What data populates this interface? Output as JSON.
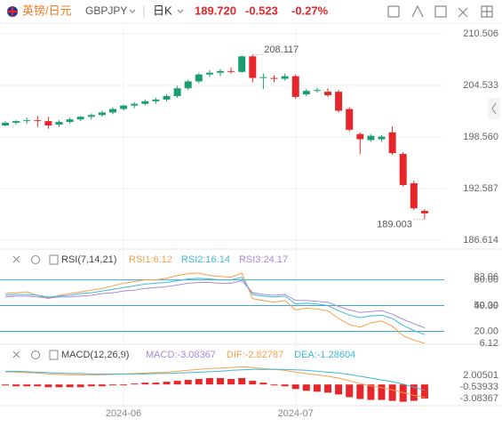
{
  "header": {
    "name": "英镑/日元",
    "symbol": "GBPJPY",
    "period": "日K",
    "price": "189.720",
    "change": "-0.523",
    "change_pct": "-0.27%"
  },
  "chart_data": [
    {
      "type": "candlestick",
      "categories": [
        null,
        null,
        null,
        null,
        null,
        null,
        null,
        null,
        null,
        null,
        null,
        "2024-06",
        null,
        null,
        null,
        null,
        null,
        null,
        null,
        null,
        null,
        null,
        null,
        null,
        null,
        null,
        null,
        "2024-07",
        null,
        null,
        null,
        null,
        null,
        null,
        null,
        null,
        null,
        null,
        null,
        null
      ],
      "open": [
        199.9,
        200.2,
        200.4,
        200.5,
        200.4,
        200.0,
        200.3,
        200.6,
        200.9,
        201.1,
        201.4,
        201.8,
        202.2,
        202.4,
        202.7,
        202.9,
        203.3,
        204.2,
        205.0,
        205.8,
        206.0,
        206.2,
        206.1,
        207.9,
        205.5,
        205.4,
        205.3,
        205.6,
        203.5,
        204.0,
        203.8,
        203.8,
        201.8,
        198.9,
        198.2,
        198.3,
        199.1,
        196.6,
        193.2,
        190.0
      ],
      "high": [
        200.4,
        200.5,
        200.8,
        201.0,
        200.9,
        200.5,
        200.8,
        201.0,
        201.3,
        201.6,
        202.0,
        202.3,
        202.6,
        202.9,
        203.1,
        203.5,
        204.5,
        205.2,
        206.0,
        206.3,
        206.4,
        206.6,
        208.0,
        208.117,
        205.9,
        205.7,
        205.9,
        205.8,
        204.1,
        204.3,
        204.2,
        204.0,
        202.0,
        199.1,
        198.9,
        198.8,
        199.8,
        196.8,
        193.5,
        190.2
      ],
      "low": [
        199.8,
        200.0,
        200.1,
        199.7,
        199.5,
        199.7,
        200.1,
        200.4,
        200.6,
        200.9,
        201.2,
        201.6,
        201.9,
        202.2,
        202.4,
        202.7,
        203.1,
        204.0,
        204.8,
        205.5,
        205.6,
        205.9,
        206.0,
        204.9,
        204.1,
        204.9,
        205.1,
        203.0,
        203.3,
        203.7,
        203.2,
        201.4,
        199.2,
        196.6,
        198.0,
        198.0,
        196.5,
        192.8,
        190.1,
        189.003
      ],
      "close": [
        200.2,
        200.4,
        200.5,
        200.4,
        199.9,
        200.3,
        200.6,
        200.9,
        201.1,
        201.4,
        201.8,
        202.2,
        202.4,
        202.7,
        202.9,
        203.3,
        204.2,
        205.0,
        205.8,
        206.0,
        206.2,
        206.1,
        207.9,
        205.4,
        205.5,
        205.3,
        205.6,
        203.2,
        203.9,
        204.0,
        203.4,
        201.6,
        199.4,
        198.3,
        198.7,
        198.6,
        196.7,
        193.0,
        190.3,
        189.72
      ],
      "up_color": "#1a9e6f",
      "down_color": "#e7262b",
      "ylim": [
        185.58,
        211.54
      ],
      "yticks": [
        186.614,
        192.587,
        {
          "value": 198.56,
          "label": "198.560"
        },
        204.533,
        210.506
      ],
      "grid": true
    },
    {
      "type": "line",
      "title": "RSI(7,14,21)",
      "series": [
        {
          "name": "RSI1:6.12",
          "color": "#f5a04a",
          "values": [
            64,
            65,
            66,
            62,
            58,
            62,
            64,
            66,
            68,
            70,
            73,
            76,
            78,
            80,
            80,
            82,
            85,
            87,
            88,
            85,
            84,
            83,
            88,
            58,
            56,
            54,
            56,
            45,
            47,
            46,
            44,
            35,
            28,
            25,
            30,
            32,
            26,
            15,
            10,
            6.12
          ]
        },
        {
          "name": "RSI2:16.14",
          "color": "#3fb8d6",
          "values": [
            62,
            63,
            63,
            62,
            60,
            61,
            62,
            64,
            65,
            67,
            69,
            71,
            73,
            75,
            76,
            77,
            79,
            81,
            82,
            81,
            80,
            80,
            83,
            63,
            61,
            60,
            61,
            52,
            53,
            52,
            50,
            44,
            39,
            36,
            38,
            39,
            35,
            27,
            21,
            16.14
          ]
        },
        {
          "name": "RSI3:24.17",
          "color": "#a68ae0",
          "values": [
            60,
            61,
            61,
            60,
            59,
            60,
            60,
            61,
            62,
            64,
            65,
            67,
            68,
            70,
            71,
            72,
            74,
            76,
            77,
            77,
            76,
            76,
            79,
            65,
            63,
            62,
            63,
            56,
            56,
            55,
            54,
            49,
            45,
            42,
            43,
            44,
            40,
            34,
            29,
            24.17
          ]
        }
      ],
      "ylim": [
        5,
        92
      ],
      "yticks": [
        {
          "value": 80,
          "label": "80.00"
        },
        {
          "value": 50,
          "label": "50.00"
        },
        {
          "value": 20,
          "label": "20.00"
        }
      ],
      "level_color": "#3fa4d6",
      "range_labels": [
        83.06,
        49.39,
        6.12
      ]
    },
    {
      "type": "combo",
      "title": "MACD(12,26,9)",
      "series": [
        {
          "name": "MACD:-3.08367",
          "kind": "bar",
          "color": "#e7262b",
          "label_color": "#a68ae0",
          "values": [
            -0.2,
            -0.4,
            -0.4,
            -0.4,
            -0.6,
            -0.6,
            -0.6,
            -0.6,
            -0.4,
            -0.4,
            -0.2,
            0,
            0.2,
            0.4,
            0.4,
            0.6,
            0.8,
            1.0,
            1.2,
            1.4,
            1.4,
            1.2,
            1.4,
            0.8,
            0.4,
            0,
            -0.4,
            -1.0,
            -1.4,
            -1.6,
            -1.8,
            -2.2,
            -2.8,
            -3.2,
            -3.4,
            -3.4,
            -3.6,
            -3.8,
            -3.6,
            -3.08367
          ]
        },
        {
          "name": "DIF:-2.82787",
          "kind": "line",
          "color": "#f5a04a",
          "values": [
            2.8,
            2.7,
            2.6,
            2.5,
            2.3,
            2.2,
            2.1,
            2.1,
            2.1,
            2.1,
            2.2,
            2.3,
            2.4,
            2.5,
            2.6,
            2.7,
            2.9,
            3.1,
            3.3,
            3.5,
            3.6,
            3.7,
            3.9,
            3.7,
            3.5,
            3.3,
            3.1,
            2.7,
            2.4,
            2.1,
            1.8,
            1.4,
            0.8,
            0.2,
            -0.3,
            -0.7,
            -1.2,
            -1.8,
            -2.4,
            -2.82787
          ]
        },
        {
          "name": "DEA:-1.28604",
          "kind": "line",
          "color": "#3fb8d6",
          "values": [
            2.9,
            2.9,
            2.8,
            2.7,
            2.6,
            2.5,
            2.4,
            2.4,
            2.3,
            2.3,
            2.3,
            2.3,
            2.3,
            2.3,
            2.4,
            2.4,
            2.5,
            2.6,
            2.7,
            2.8,
            2.9,
            3.1,
            3.2,
            3.3,
            3.3,
            3.3,
            3.3,
            3.2,
            3.1,
            2.9,
            2.7,
            2.5,
            2.2,
            1.8,
            1.4,
            1.0,
            0.6,
            0.1,
            -0.6,
            -1.28604
          ]
        }
      ],
      "ylim": [
        -4.66,
        4.34
      ],
      "yticks": [
        2.00501,
        -0.53933,
        -3.08367
      ]
    }
  ]
}
